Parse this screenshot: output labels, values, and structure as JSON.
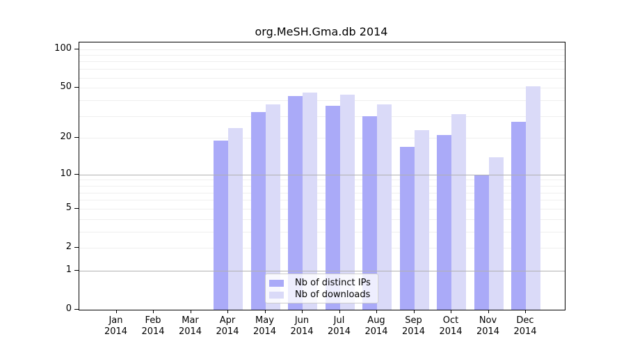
{
  "chart_data": {
    "type": "bar",
    "title": "org.MeSH.Gma.db 2014",
    "scale": "log10(1+x)",
    "categories": [
      {
        "month": "Jan",
        "year": "2014"
      },
      {
        "month": "Feb",
        "year": "2014"
      },
      {
        "month": "Mar",
        "year": "2014"
      },
      {
        "month": "Apr",
        "year": "2014"
      },
      {
        "month": "May",
        "year": "2014"
      },
      {
        "month": "Jun",
        "year": "2014"
      },
      {
        "month": "Jul",
        "year": "2014"
      },
      {
        "month": "Aug",
        "year": "2014"
      },
      {
        "month": "Sep",
        "year": "2014"
      },
      {
        "month": "Oct",
        "year": "2014"
      },
      {
        "month": "Nov",
        "year": "2014"
      },
      {
        "month": "Dec",
        "year": "2014"
      }
    ],
    "series": [
      {
        "name": "Nb of distinct IPs",
        "color": "#aaaaf8",
        "values": [
          0,
          0,
          0,
          19,
          32,
          43,
          36,
          30,
          17,
          21,
          10,
          27
        ]
      },
      {
        "name": "Nb of downloads",
        "color": "#dadaf8",
        "values": [
          0,
          0,
          0,
          24,
          37,
          46,
          44,
          37,
          23,
          31,
          14,
          51
        ]
      }
    ],
    "y_ticks": [
      0,
      1,
      2,
      5,
      10,
      20,
      50,
      100
    ],
    "minor_gridlines": [
      2,
      3,
      4,
      5,
      6,
      7,
      8,
      9,
      20,
      30,
      40,
      50,
      60,
      70,
      80,
      90,
      100
    ],
    "major_gridlines": [
      1,
      10
    ],
    "ylim": [
      0,
      110
    ],
    "xlabel": "",
    "ylabel": "",
    "grid": true,
    "legend_position": "lower center"
  }
}
